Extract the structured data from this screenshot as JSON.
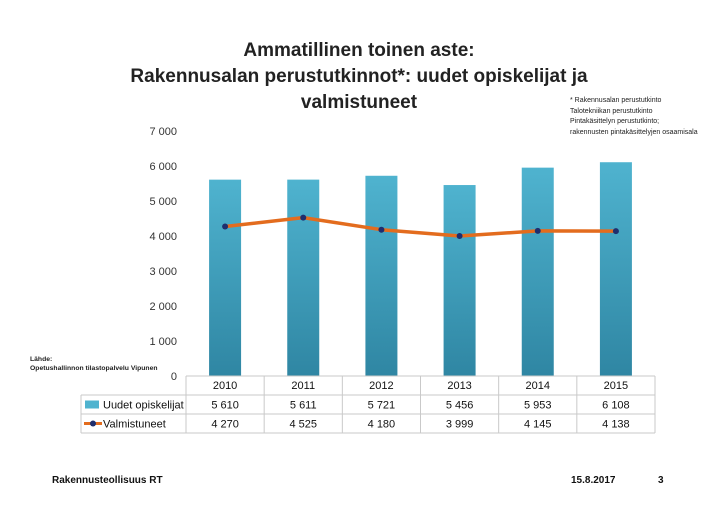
{
  "title": {
    "line1": "Ammatillinen toinen aste:",
    "line2": "Rakennusalan perustutkinnot*: uudet opiskelijat ja",
    "line3": "valmistuneet"
  },
  "footnote": {
    "line1": "* Rakennusalan perustutkinto",
    "line2": "Talotekniikan perustutkinto",
    "line3": "Pintakäsittelyn perustutkinto;",
    "line4": "rakennusten pintakäsittelyjen osaamisala"
  },
  "source": {
    "label": "Lähde:",
    "text": "Opetushallinnon tilastopalvelu Vipunen"
  },
  "footer": {
    "org": "Rakennusteollisuus RT",
    "date": "15.8.2017",
    "page": "3"
  },
  "colors": {
    "bar": "#4fb3cf",
    "line": "#e36c1e",
    "marker": "#1f2e6e"
  },
  "chart_data": {
    "type": "bar",
    "categories": [
      "2010",
      "2011",
      "2012",
      "2013",
      "2014",
      "2015"
    ],
    "ylim": [
      0,
      7000
    ],
    "yticks": [
      "0",
      "1 000",
      "2 000",
      "3 000",
      "4 000",
      "5 000",
      "6 000",
      "7 000"
    ],
    "series": [
      {
        "name": "Uudet opiskelijat",
        "kind": "bar",
        "values": [
          5610,
          5611,
          5721,
          5456,
          5953,
          6108
        ],
        "labels": [
          "5 610",
          "5 611",
          "5 721",
          "5 456",
          "5 953",
          "6 108"
        ]
      },
      {
        "name": "Valmistuneet",
        "kind": "line",
        "values": [
          4270,
          4525,
          4180,
          3999,
          4145,
          4138
        ],
        "labels": [
          "4 270",
          "4 525",
          "4 180",
          "3 999",
          "4 145",
          "4 138"
        ]
      }
    ],
    "legend": "data-table"
  }
}
